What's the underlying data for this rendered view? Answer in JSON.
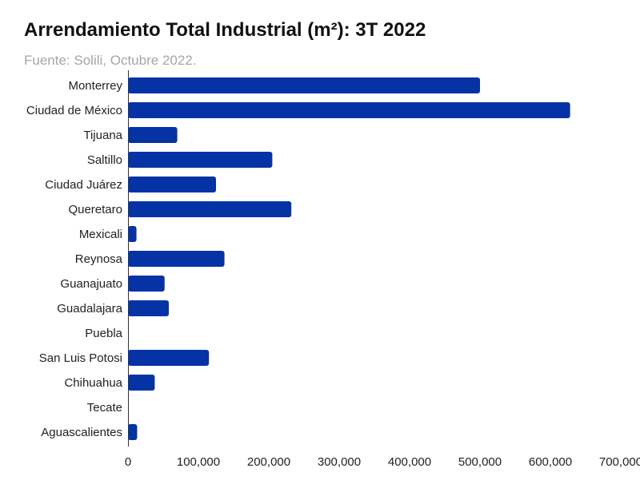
{
  "chart_data": {
    "type": "bar",
    "orientation": "horizontal",
    "title": "Arrendamiento Total Industrial (m²): 3T 2022",
    "subtitle": "Fuente: Solili, Octubre 2022.",
    "categories": [
      "Monterrey",
      "Ciudad de México",
      "Tijuana",
      "Saltillo",
      "Ciudad Juárez",
      "Queretaro",
      "Mexicali",
      "Reynosa",
      "Guanajuato",
      "Guadalajara",
      "Puebla",
      "San Luis Potosi",
      "Chihuahua",
      "Tecate",
      "Aguascalientes"
    ],
    "values": [
      500000,
      628000,
      70000,
      205000,
      125000,
      232000,
      12000,
      137000,
      52000,
      58000,
      0,
      115000,
      38000,
      0,
      13000
    ],
    "xlim": [
      0,
      700000
    ],
    "xticks": [
      0,
      100000,
      200000,
      300000,
      400000,
      500000,
      600000,
      700000
    ],
    "xtick_labels": [
      "0",
      "100,000",
      "200,000",
      "300,000",
      "400,000",
      "500,000",
      "600,000",
      "700,000"
    ],
    "bar_color": "#0533a5",
    "grid": false,
    "legend": "none"
  }
}
